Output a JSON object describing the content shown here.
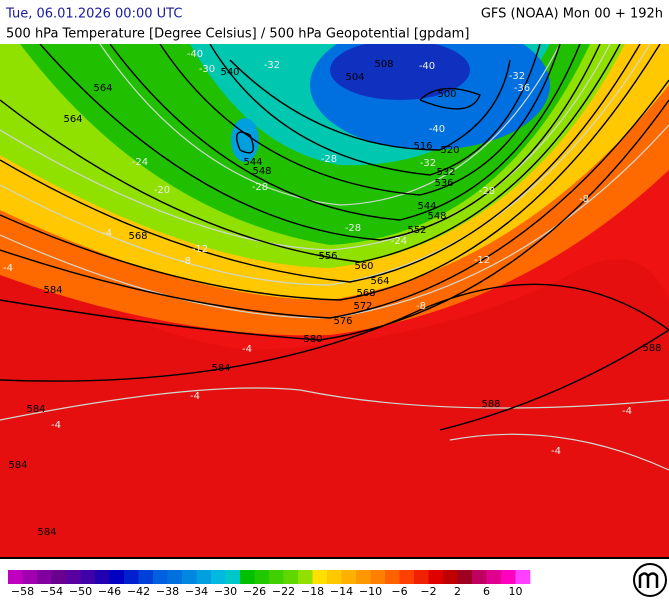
{
  "header": {
    "datetime": "Tue, 06.01.2026 00:00 UTC",
    "model": "GFS (NOAA) Mon 00 + 192h",
    "subtitle": "500 hPa Temperature [Degree Celsius] / 500 hPa Geopotential [gpdam]"
  },
  "map": {
    "height_labels": [
      "540",
      "504",
      "508",
      "500",
      "516",
      "520",
      "532",
      "536",
      "544",
      "548",
      "552",
      "556",
      "560",
      "564",
      "568",
      "572",
      "576",
      "580",
      "564",
      "564",
      "568",
      "584",
      "584",
      "584",
      "584",
      "584",
      "544",
      "548",
      "588",
      "588"
    ],
    "temperature_labels": [
      "-40",
      "-30",
      "-32",
      "-40",
      "-32",
      "-36",
      "-40",
      "-28",
      "-28",
      "-24",
      "-28",
      "-24",
      "-20",
      "-32",
      "-28",
      "-12",
      "-8",
      "-8",
      "-4",
      "-4",
      "-8",
      "-12",
      "-4",
      "-4",
      "-4",
      "-4",
      "-4"
    ]
  },
  "colorbar": {
    "colors": [
      "#c000c0",
      "#a000b0",
      "#8000a0",
      "#6a0090",
      "#5a00a0",
      "#4000a8",
      "#2000b0",
      "#0000c0",
      "#0020d0",
      "#0040d8",
      "#0060e0",
      "#0070e0",
      "#0088e0",
      "#00a0e0",
      "#00b8e0",
      "#00c8c8",
      "#00c000",
      "#20c800",
      "#40d000",
      "#60d800",
      "#90e000",
      "#ffe000",
      "#ffc800",
      "#ffb000",
      "#ff9800",
      "#ff8000",
      "#ff6000",
      "#ff4000",
      "#f02000",
      "#e00000",
      "#c00000",
      "#a00020",
      "#c00060",
      "#e00090",
      "#ff00c0",
      "#ff40ff"
    ],
    "labels": [
      "−58",
      "−54",
      "−50",
      "−46",
      "−42",
      "−38",
      "−34",
      "−30",
      "−26",
      "−22",
      "−18",
      "−14",
      "−10",
      "−6",
      "−2",
      "2",
      "6",
      "10"
    ]
  }
}
